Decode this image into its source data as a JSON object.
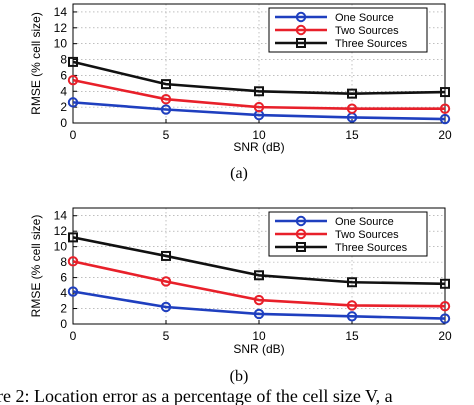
{
  "chart_data": [
    {
      "type": "line",
      "panel_label": "(a)",
      "x": [
        0,
        5,
        10,
        15,
        20
      ],
      "xticks": [
        "0",
        "5",
        "10",
        "15",
        "20"
      ],
      "yticks": [
        "0",
        "2",
        "4",
        "6",
        "8",
        "10",
        "12",
        "14"
      ],
      "xlabel": "SNR (dB)",
      "ylabel": "RMSE (% cell size)",
      "xlim": [
        0,
        20
      ],
      "ylim": [
        0,
        15
      ],
      "grid": true,
      "legend": "top-right",
      "series": [
        {
          "name": "One Source",
          "color": "#1f3fbf",
          "marker": "circle",
          "values": [
            2.6,
            1.7,
            1.0,
            0.7,
            0.5
          ]
        },
        {
          "name": "Two Sources",
          "color": "#e8202a",
          "marker": "circle",
          "values": [
            5.4,
            3.0,
            2.0,
            1.8,
            1.8
          ]
        },
        {
          "name": "Three Sources",
          "color": "#111111",
          "marker": "square",
          "values": [
            7.7,
            4.9,
            4.0,
            3.7,
            3.9
          ]
        }
      ]
    },
    {
      "type": "line",
      "panel_label": "(b)",
      "x": [
        0,
        5,
        10,
        15,
        20
      ],
      "xticks": [
        "0",
        "5",
        "10",
        "15",
        "20"
      ],
      "yticks": [
        "0",
        "2",
        "4",
        "6",
        "8",
        "10",
        "12",
        "14"
      ],
      "xlabel": "SNR (dB)",
      "ylabel": "RMSE (% cell size)",
      "xlim": [
        0,
        20
      ],
      "ylim": [
        0,
        15
      ],
      "grid": true,
      "legend": "top-right",
      "series": [
        {
          "name": "One Source",
          "color": "#1f3fbf",
          "marker": "circle",
          "values": [
            4.2,
            2.2,
            1.3,
            1.0,
            0.7
          ]
        },
        {
          "name": "Two Sources",
          "color": "#e8202a",
          "marker": "circle",
          "values": [
            8.1,
            5.5,
            3.1,
            2.4,
            2.3
          ]
        },
        {
          "name": "Three Sources",
          "color": "#111111",
          "marker": "square",
          "values": [
            11.2,
            8.8,
            6.3,
            5.4,
            5.2
          ]
        }
      ]
    }
  ],
  "caption": "ure 2: Location error as a percentage of the cell size V, a"
}
